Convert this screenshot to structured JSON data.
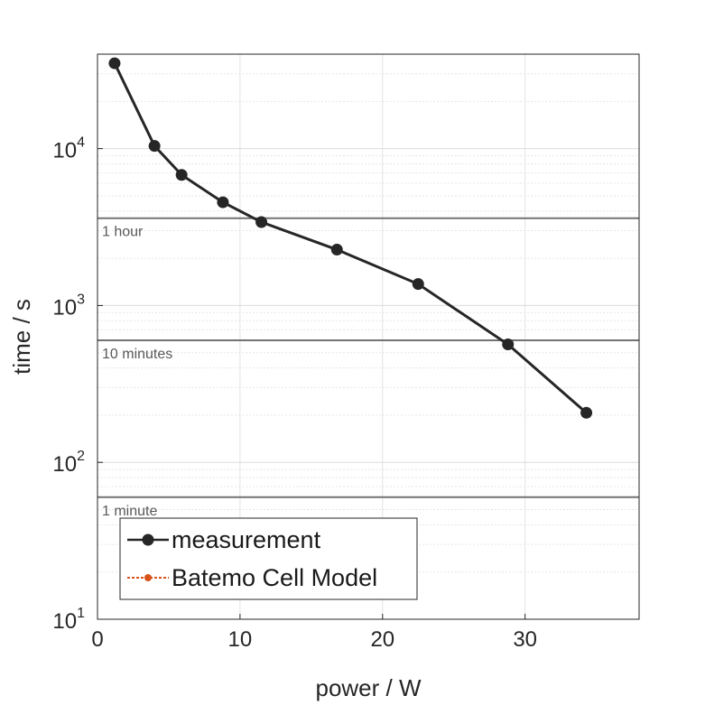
{
  "chart_data": {
    "type": "line",
    "title": "",
    "xlabel": "power / W",
    "ylabel": "time / s",
    "xlim": [
      0,
      38
    ],
    "ylim": [
      10,
      40000
    ],
    "yscale": "log",
    "grid": true,
    "x_ticks": [
      0,
      10,
      20,
      30
    ],
    "y_ticks": [
      {
        "value": 10,
        "base": "10",
        "exp": "1"
      },
      {
        "value": 100,
        "base": "10",
        "exp": "2"
      },
      {
        "value": 1000,
        "base": "10",
        "exp": "3"
      },
      {
        "value": 10000,
        "base": "10",
        "exp": "4"
      }
    ],
    "reference_lines": [
      {
        "y": 3600,
        "label": "1 hour"
      },
      {
        "y": 600,
        "label": "10 minutes"
      },
      {
        "y": 60,
        "label": "1 minute"
      }
    ],
    "series": [
      {
        "name": "measurement",
        "color": "#262626",
        "x": [
          1.2,
          4.0,
          5.9,
          8.8,
          11.5,
          16.8,
          22.5,
          28.8,
          34.3
        ],
        "y": [
          35000,
          10400,
          6800,
          4550,
          3400,
          2270,
          1370,
          565,
          207
        ]
      },
      {
        "name": "Batemo Cell Model",
        "color": "#d95319",
        "x": [],
        "y": []
      }
    ],
    "legend_position": "bottom-left"
  }
}
